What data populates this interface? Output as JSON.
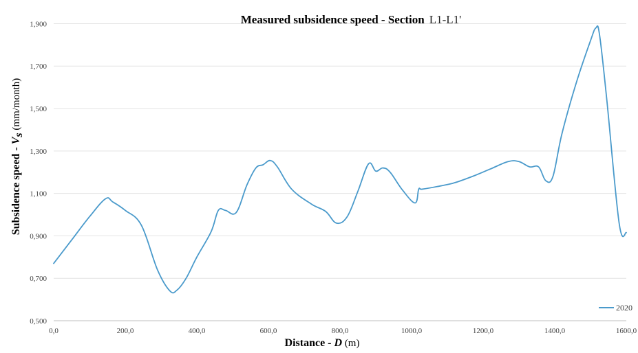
{
  "chart_data": {
    "type": "line",
    "title": "Measured subsidence speed - Section",
    "title_suffix": "L1-L1'",
    "xlabel_main": "Distance - ",
    "xlabel_var": "D",
    "xlabel_unit": " (m)",
    "ylabel_main": "Subsidence speed - ",
    "ylabel_var": "V",
    "ylabel_sub": "s",
    "ylabel_unit": " (mm/month)",
    "xlim": [
      0,
      1600
    ],
    "ylim": [
      0.5,
      1.95
    ],
    "x_ticks": [
      {
        "value": 0,
        "label": "0,0"
      },
      {
        "value": 200,
        "label": "200,0"
      },
      {
        "value": 400,
        "label": "400,0"
      },
      {
        "value": 600,
        "label": "600,0"
      },
      {
        "value": 800,
        "label": "800,0"
      },
      {
        "value": 1000,
        "label": "1000,0"
      },
      {
        "value": 1200,
        "label": "1200,0"
      },
      {
        "value": 1400,
        "label": "1400,0"
      },
      {
        "value": 1600,
        "label": "1600,0"
      }
    ],
    "y_ticks": [
      {
        "value": 0.5,
        "label": "0,500"
      },
      {
        "value": 0.7,
        "label": "0,700"
      },
      {
        "value": 0.9,
        "label": "0,900"
      },
      {
        "value": 1.1,
        "label": "1,100"
      },
      {
        "value": 1.3,
        "label": "1,300"
      },
      {
        "value": 1.5,
        "label": "1,500"
      },
      {
        "value": 1.7,
        "label": "1,700"
      },
      {
        "value": 1.9,
        "label": "1,900"
      }
    ],
    "grid": "horizontal",
    "legend_position": "bottom-right",
    "series": [
      {
        "name": "2020",
        "color": "#4a9acb",
        "x": [
          0,
          50,
          100,
          145,
          165,
          200,
          245,
          290,
          325,
          345,
          370,
          400,
          440,
          460,
          480,
          510,
          540,
          565,
          585,
          605,
          625,
          665,
          720,
          760,
          790,
          820,
          850,
          880,
          900,
          920,
          940,
          975,
          1010,
          1020,
          1030,
          1080,
          1120,
          1170,
          1220,
          1270,
          1300,
          1330,
          1355,
          1375,
          1395,
          1420,
          1460,
          1500,
          1515,
          1525,
          1545,
          1580,
          1600
        ],
        "y": [
          0.77,
          0.88,
          0.99,
          1.075,
          1.06,
          1.02,
          0.95,
          0.74,
          0.64,
          0.645,
          0.7,
          0.8,
          0.92,
          1.02,
          1.02,
          1.01,
          1.14,
          1.22,
          1.235,
          1.255,
          1.225,
          1.12,
          1.05,
          1.015,
          0.96,
          0.99,
          1.11,
          1.24,
          1.205,
          1.22,
          1.2,
          1.115,
          1.055,
          1.12,
          1.12,
          1.135,
          1.15,
          1.18,
          1.215,
          1.25,
          1.25,
          1.225,
          1.225,
          1.16,
          1.18,
          1.38,
          1.62,
          1.82,
          1.88,
          1.85,
          1.55,
          0.96,
          0.915
        ]
      }
    ]
  }
}
